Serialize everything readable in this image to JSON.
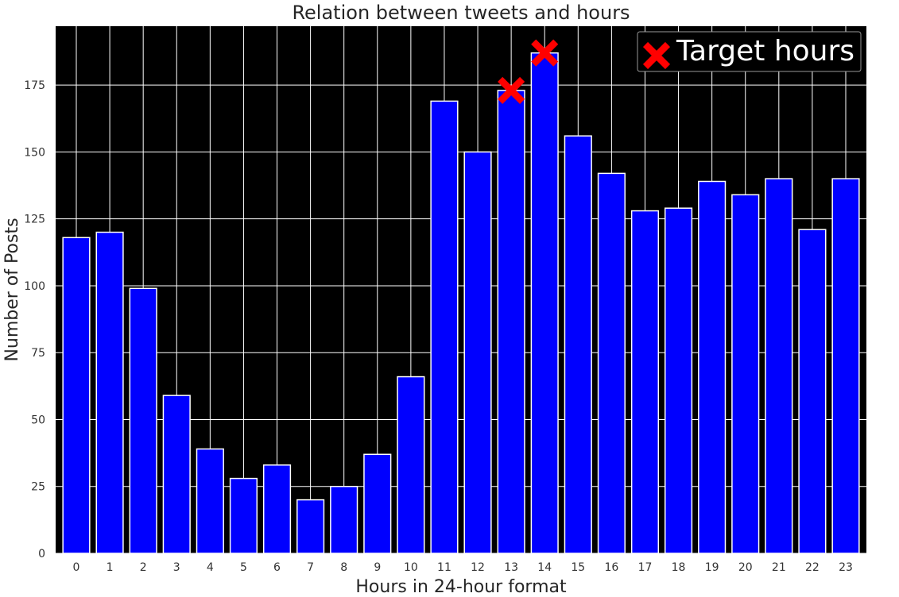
{
  "chart_data": {
    "type": "bar",
    "title": "Relation between tweets and hours",
    "xlabel": "Hours in 24-hour format",
    "ylabel": "Number of Posts",
    "categories": [
      "0",
      "1",
      "2",
      "3",
      "4",
      "5",
      "6",
      "7",
      "8",
      "9",
      "10",
      "11",
      "12",
      "13",
      "14",
      "15",
      "16",
      "17",
      "18",
      "19",
      "20",
      "21",
      "22",
      "23"
    ],
    "values": [
      118,
      120,
      99,
      59,
      39,
      28,
      33,
      20,
      25,
      37,
      66,
      169,
      150,
      173,
      187,
      156,
      142,
      128,
      129,
      139,
      134,
      140,
      121,
      140
    ],
    "ylim": [
      0,
      197
    ],
    "yticks": [
      0,
      25,
      50,
      75,
      100,
      125,
      150,
      175
    ],
    "grid": true,
    "background_color": "#000000",
    "bar_color": "#0000ff",
    "bar_edge_color": "#ffffff",
    "markers": {
      "name": "Target hours",
      "shape": "x",
      "color": "#ff0000",
      "points": [
        {
          "x": "13",
          "y": 173
        },
        {
          "x": "14",
          "y": 187
        }
      ]
    },
    "legend_position": "top-right"
  }
}
